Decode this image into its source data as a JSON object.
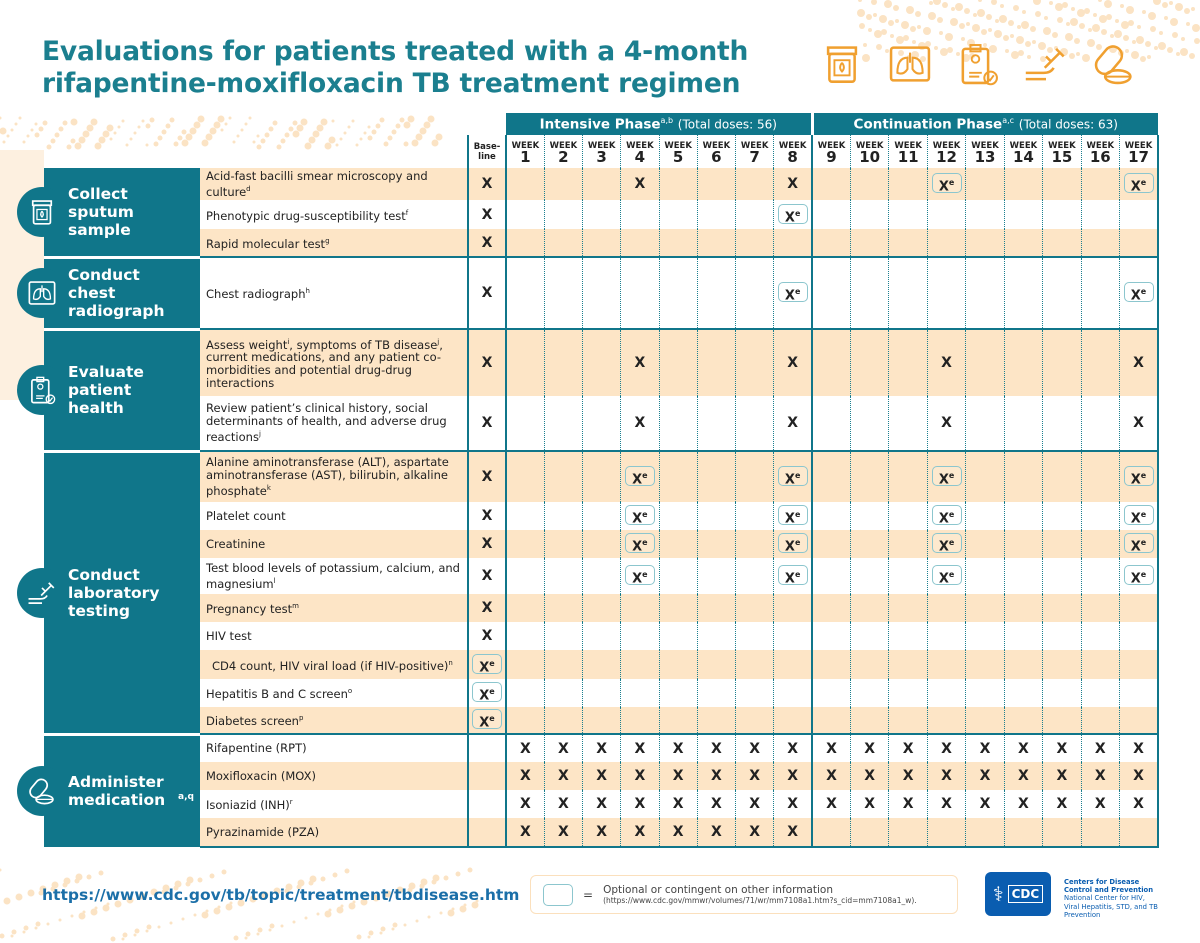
{
  "title": {
    "line1": "Evaluations for patients treated with a 4-month",
    "line2": "rifapentine-moxifloxacin TB treatment regimen"
  },
  "top_icons": [
    "sputum-cup-icon",
    "lungs-icon",
    "clipboard-patient-icon",
    "arm-injection-icon",
    "pills-icon"
  ],
  "colors": {
    "teal": "#10768a",
    "peach": "#fde5c6",
    "orange": "#f0a030",
    "optional_box": "#8cc6ce",
    "cdc_blue": "#0a5db0"
  },
  "header": {
    "intensive": {
      "label": "Intensive Phase",
      "sup": "a,b",
      "doses": "(Total doses: 56)"
    },
    "continuation": {
      "label": "Continuation Phase",
      "sup": "a,c",
      "doses": "(Total doses: 63)"
    },
    "baseline": "Base-line",
    "week_word": "WEEK",
    "weeks": [
      "1",
      "2",
      "3",
      "4",
      "5",
      "6",
      "7",
      "8",
      "9",
      "10",
      "11",
      "12",
      "13",
      "14",
      "15",
      "16",
      "17"
    ]
  },
  "groups": [
    {
      "label": "Collect sputum sample",
      "sup": "",
      "icon": "sputum-cup-icon",
      "rows": [
        {
          "parts": [
            {
              "t": "Acid-fast bacilli smear microscopy and culture"
            },
            {
              "s": "d"
            }
          ],
          "marks": [
            "X",
            "",
            "",
            "",
            "X",
            "",
            "",
            "",
            "X",
            "",
            "",
            "",
            "Xe",
            "",
            "",
            "",
            "",
            "Xe"
          ]
        },
        {
          "parts": [
            {
              "t": "Phenotypic drug-susceptibility test"
            },
            {
              "s": "f"
            }
          ],
          "marks": [
            "X",
            "",
            "",
            "",
            "",
            "",
            "",
            "",
            "Xe",
            "",
            "",
            "",
            "",
            "",
            "",
            "",
            "",
            ""
          ]
        },
        {
          "parts": [
            {
              "t": "Rapid molecular test"
            },
            {
              "s": "g"
            }
          ],
          "marks": [
            "X",
            "",
            "",
            "",
            "",
            "",
            "",
            "",
            "",
            "",
            "",
            "",
            "",
            "",
            "",
            "",
            "",
            ""
          ]
        }
      ]
    },
    {
      "label": "Conduct chest radiograph",
      "sup": "",
      "icon": "lungs-icon",
      "rows": [
        {
          "parts": [
            {
              "t": "Chest radiograph"
            },
            {
              "s": "h"
            }
          ],
          "marks": [
            "X",
            "",
            "",
            "",
            "",
            "",
            "",
            "",
            "Xe",
            "",
            "",
            "",
            "",
            "",
            "",
            "",
            "",
            "Xe"
          ]
        }
      ]
    },
    {
      "label": "Evaluate patient health",
      "sup": "",
      "icon": "clipboard-patient-icon",
      "rows": [
        {
          "parts": [
            {
              "t": "Assess weight"
            },
            {
              "s": "i"
            },
            {
              "t": ", symptoms of TB disease"
            },
            {
              "s": "j"
            },
            {
              "t": ", current medications, and any patient co-morbidities and potential drug-drug interactions"
            }
          ],
          "marks": [
            "X",
            "",
            "",
            "",
            "X",
            "",
            "",
            "",
            "X",
            "",
            "",
            "",
            "X",
            "",
            "",
            "",
            "",
            "X"
          ]
        },
        {
          "parts": [
            {
              "t": "Review patient’s clinical history, social determinants of health, and adverse drug reactions"
            },
            {
              "s": "j"
            }
          ],
          "marks": [
            "X",
            "",
            "",
            "",
            "X",
            "",
            "",
            "",
            "X",
            "",
            "",
            "",
            "X",
            "",
            "",
            "",
            "",
            "X"
          ]
        }
      ]
    },
    {
      "label": "Conduct laboratory testing",
      "sup": "",
      "icon": "arm-injection-icon",
      "rows": [
        {
          "parts": [
            {
              "t": "Alanine aminotransferase (ALT), aspartate aminotransferase (AST), bilirubin, alkaline phosphate"
            },
            {
              "s": "k"
            }
          ],
          "marks": [
            "X",
            "",
            "",
            "",
            "Xe",
            "",
            "",
            "",
            "Xe",
            "",
            "",
            "",
            "Xe",
            "",
            "",
            "",
            "",
            "Xe"
          ]
        },
        {
          "parts": [
            {
              "t": "Platelet count"
            }
          ],
          "marks": [
            "X",
            "",
            "",
            "",
            "Xe",
            "",
            "",
            "",
            "Xe",
            "",
            "",
            "",
            "Xe",
            "",
            "",
            "",
            "",
            "Xe"
          ]
        },
        {
          "parts": [
            {
              "t": "Creatinine"
            }
          ],
          "marks": [
            "X",
            "",
            "",
            "",
            "Xe",
            "",
            "",
            "",
            "Xe",
            "",
            "",
            "",
            "Xe",
            "",
            "",
            "",
            "",
            "Xe"
          ]
        },
        {
          "parts": [
            {
              "t": "Test blood levels of potassium, calcium, and magnesium"
            },
            {
              "s": "l"
            }
          ],
          "marks": [
            "X",
            "",
            "",
            "",
            "Xe",
            "",
            "",
            "",
            "Xe",
            "",
            "",
            "",
            "Xe",
            "",
            "",
            "",
            "",
            "Xe"
          ]
        },
        {
          "parts": [
            {
              "t": "Pregnancy test"
            },
            {
              "s": "m"
            }
          ],
          "marks": [
            "X",
            "",
            "",
            "",
            "",
            "",
            "",
            "",
            "",
            "",
            "",
            "",
            "",
            "",
            "",
            "",
            "",
            ""
          ]
        },
        {
          "parts": [
            {
              "t": "HIV test"
            }
          ],
          "marks": [
            "X",
            "",
            "",
            "",
            "",
            "",
            "",
            "",
            "",
            "",
            "",
            "",
            "",
            "",
            "",
            "",
            "",
            ""
          ]
        },
        {
          "parts": [
            {
              "t": "CD4 count, HIV viral load (if HIV-positive)"
            },
            {
              "s": "n"
            }
          ],
          "marks": [
            "Xe",
            "",
            "",
            "",
            "",
            "",
            "",
            "",
            "",
            "",
            "",
            "",
            "",
            "",
            "",
            "",
            "",
            ""
          ]
        },
        {
          "parts": [
            {
              "t": "Hepatitis B and C screen"
            },
            {
              "s": "o"
            }
          ],
          "marks": [
            "Xe",
            "",
            "",
            "",
            "",
            "",
            "",
            "",
            "",
            "",
            "",
            "",
            "",
            "",
            "",
            "",
            "",
            ""
          ]
        },
        {
          "parts": [
            {
              "t": "Diabetes screen"
            },
            {
              "s": "p"
            }
          ],
          "marks": [
            "Xe",
            "",
            "",
            "",
            "",
            "",
            "",
            "",
            "",
            "",
            "",
            "",
            "",
            "",
            "",
            "",
            "",
            ""
          ]
        }
      ]
    },
    {
      "label": "Administer medication",
      "sup": "a,q",
      "icon": "pills-icon",
      "rows": [
        {
          "parts": [
            {
              "t": "Rifapentine (RPT)"
            }
          ],
          "marks": [
            "",
            "X",
            "X",
            "X",
            "X",
            "X",
            "X",
            "X",
            "X",
            "X",
            "X",
            "X",
            "X",
            "X",
            "X",
            "X",
            "X",
            "X"
          ]
        },
        {
          "parts": [
            {
              "t": "Moxifloxacin (MOX)"
            }
          ],
          "marks": [
            "",
            "X",
            "X",
            "X",
            "X",
            "X",
            "X",
            "X",
            "X",
            "X",
            "X",
            "X",
            "X",
            "X",
            "X",
            "X",
            "X",
            "X"
          ]
        },
        {
          "parts": [
            {
              "t": "Isoniazid (INH)"
            },
            {
              "s": "r"
            }
          ],
          "marks": [
            "",
            "X",
            "X",
            "X",
            "X",
            "X",
            "X",
            "X",
            "X",
            "X",
            "X",
            "X",
            "X",
            "X",
            "X",
            "X",
            "X",
            "X"
          ]
        },
        {
          "parts": [
            {
              "t": "Pyrazinamide (PZA)"
            }
          ],
          "marks": [
            "",
            "X",
            "X",
            "X",
            "X",
            "X",
            "X",
            "X",
            "X",
            "",
            "",
            "",
            "",
            "",
            "",
            "",
            "",
            ""
          ]
        }
      ]
    }
  ],
  "mark_text": {
    "x": "X",
    "optional_sup": "e"
  },
  "footer": {
    "url": "https://www.cdc.gov/tb/topic/treatment/tbdisease.htm",
    "legend_equals": "=",
    "legend_text": "Optional or contingent on other information",
    "legend_source": "(https://www.cdc.gov/mmwr/volumes/71/wr/mm7108a1.htm?s_cid=mm7108a1_w).",
    "cdc_logo": "CDC",
    "cdc_name1": "Centers for Disease",
    "cdc_name2": "Control and Prevention",
    "cdc_center": "National Center for HIV, Viral Hepatitis, STD, and TB Prevention"
  }
}
